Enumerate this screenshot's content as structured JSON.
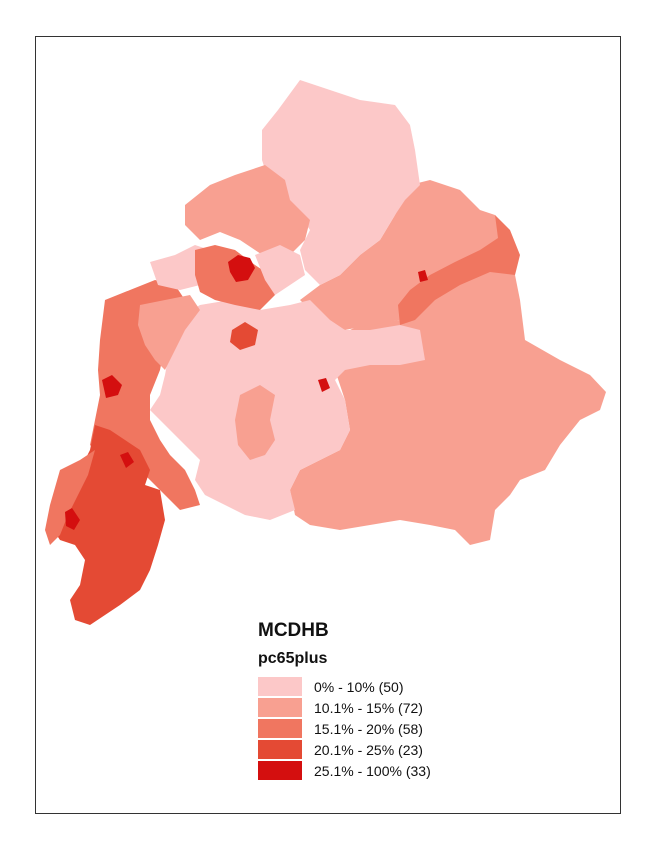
{
  "map": {
    "title": "MCDHB",
    "variable": "pc65plus",
    "legend": [
      {
        "label": "0% - 10% (50)",
        "color": "#fcc8c8"
      },
      {
        "label": "10.1% - 15% (72)",
        "color": "#f8a091"
      },
      {
        "label": "15.1% - 20% (58)",
        "color": "#f07660"
      },
      {
        "label": "20.1% - 25% (23)",
        "color": "#e44a34"
      },
      {
        "label": "25.1% - 100% (33)",
        "color": "#d40f0f"
      }
    ]
  }
}
